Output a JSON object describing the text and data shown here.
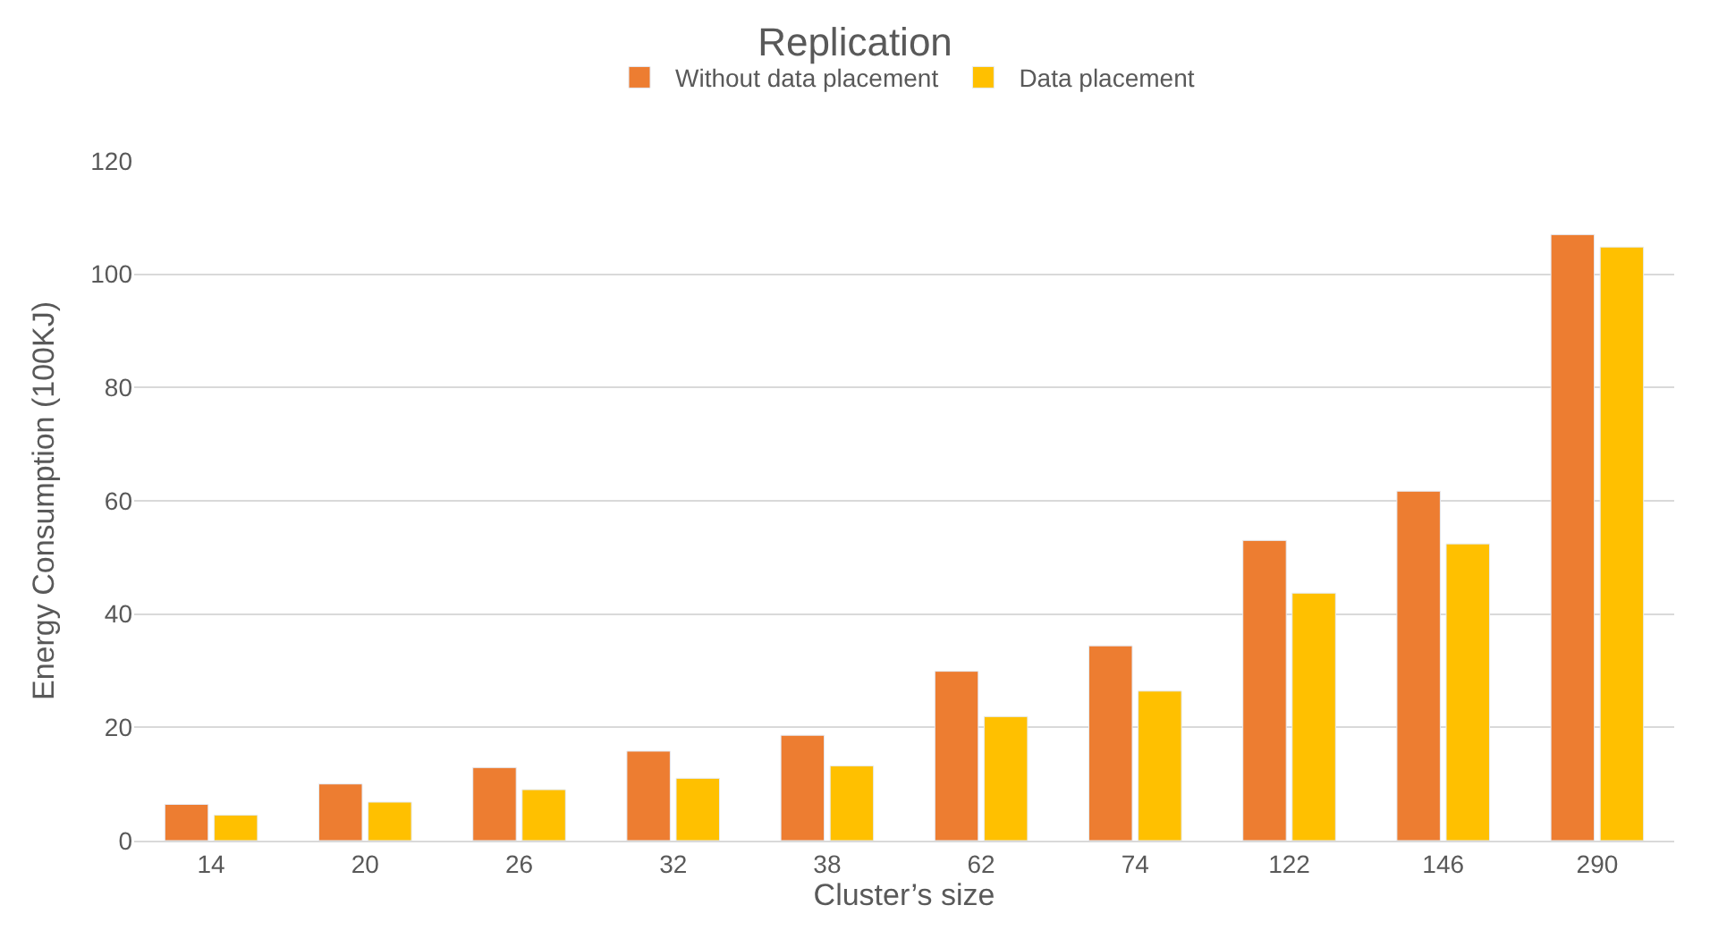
{
  "chart_data": {
    "type": "bar",
    "title": "Replication",
    "xlabel": "Cluster’s size",
    "ylabel": "Energy Consumption (100KJ)",
    "categories": [
      "14",
      "20",
      "26",
      "32",
      "38",
      "62",
      "74",
      "122",
      "146",
      "290"
    ],
    "series": [
      {
        "name": "Without data placement",
        "color": "#ed7d31",
        "values": [
          6.4,
          10,
          12.9,
          15.8,
          18.6,
          29.9,
          34.4,
          53,
          61.7,
          107
        ]
      },
      {
        "name": "Data placement",
        "color": "#ffc000",
        "values": [
          4.5,
          6.8,
          9,
          11,
          13.2,
          21.9,
          26.4,
          43.7,
          52.4,
          104.8
        ]
      }
    ],
    "ylim": [
      0,
      120
    ],
    "yticks": [
      0,
      20,
      40,
      60,
      80,
      100,
      120
    ],
    "grid": "y",
    "legend": "top"
  }
}
